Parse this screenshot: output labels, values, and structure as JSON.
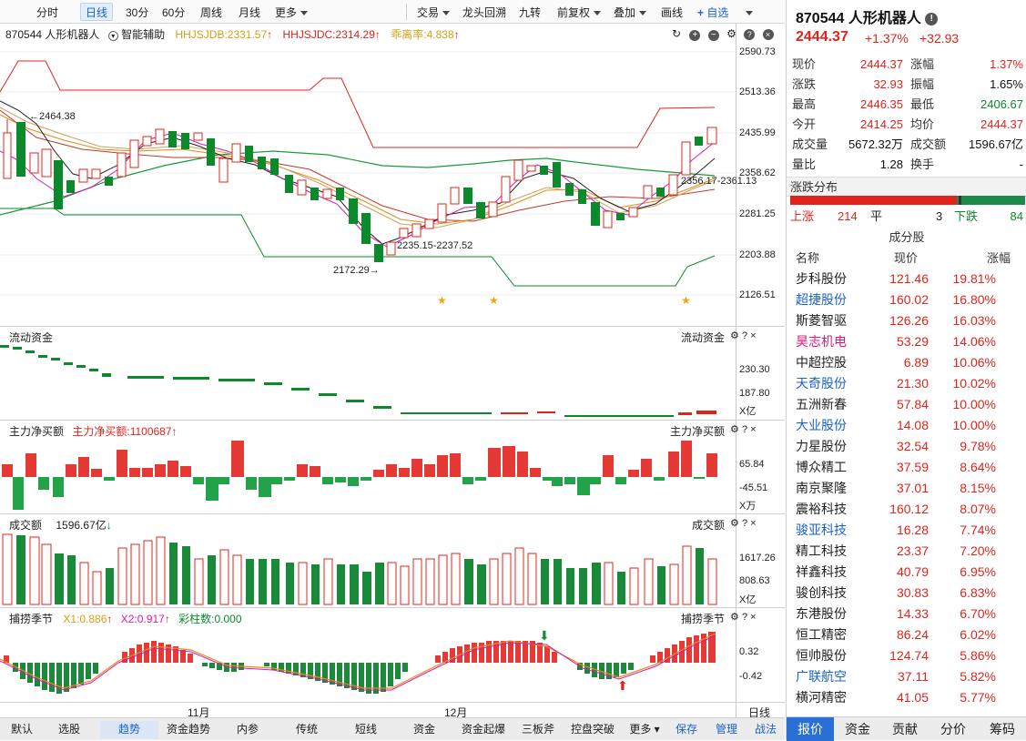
{
  "toolbar": {
    "left": [
      "分时",
      "日线",
      "30分",
      "60分",
      "周线",
      "月线",
      "更多"
    ],
    "right": [
      "交易",
      "龙头回溯",
      "九转",
      "前复权",
      "叠加",
      "画线",
      "自选"
    ]
  },
  "main": {
    "stock_label": "870544 人形机器人",
    "assist": "智能辅助",
    "ind1": "HHJSJDB:2331.57",
    "ind2": "HHJSJDC:2314.29",
    "ind3": "乖离率:4.838",
    "y_ticks": [
      "2590.73",
      "2513.36",
      "2435.99",
      "2358.62",
      "2281.25",
      "2203.88",
      "2126.51"
    ],
    "ann_high": "2464.38",
    "ann_mid": "2356.17-2361.13",
    "ann_low_range": "2235.15-2237.52",
    "ann_low": "2172.29"
  },
  "flow": {
    "title": "流动资金",
    "right_title": "流动资金",
    "ticks": [
      "230.30",
      "187.80"
    ],
    "unit": "X亿"
  },
  "net": {
    "title": "主力净买额",
    "value": "主力净买额:1100687",
    "right_title": "主力净买额",
    "ticks": [
      "65.84",
      "-45.51"
    ],
    "unit": "X万"
  },
  "vol": {
    "title": "成交额",
    "value": "1596.67亿",
    "right_title": "成交额",
    "ticks": [
      "1617.26",
      "808.63"
    ],
    "unit": "X亿"
  },
  "season": {
    "title": "捕捞季节",
    "x1": "X1:0.886",
    "x2": "X2:0.917",
    "bars": "彩柱数:0.000",
    "right_title": "捕捞季节",
    "ticks": [
      "0.32",
      "-0.42"
    ]
  },
  "xaxis": {
    "nov": "11月",
    "dec": "12月",
    "period": "日线"
  },
  "bottom_tabs": [
    "默认",
    "选股",
    "趋势",
    "资金趋势",
    "内参",
    "传统",
    "短线",
    "资金",
    "资金起爆",
    "三板斧",
    "控盘突破",
    "更多",
    "保存",
    "管理",
    "战法"
  ],
  "quote": {
    "title": "870544 人形机器人",
    "price": "2444.37",
    "pct": "+1.37%",
    "chg": "+32.93",
    "rows": [
      [
        "现价",
        "2444.37",
        "涨幅",
        "1.37%"
      ],
      [
        "涨跌",
        "32.93",
        "振幅",
        "1.65%"
      ],
      [
        "最高",
        "2446.35",
        "最低",
        "2406.67"
      ],
      [
        "今开",
        "2414.25",
        "均价",
        "2444.37"
      ],
      [
        "成交量",
        "5672.32万",
        "成交额",
        "1596.67亿"
      ],
      [
        "量比",
        "1.28",
        "换手",
        "-"
      ]
    ],
    "breadth_title": "涨跌分布",
    "up_label": "上涨",
    "up": "214",
    "flat_label": "平",
    "flat": "3",
    "down_label": "下跌",
    "down": "84",
    "comp_title": "成分股",
    "comp_head": [
      "名称",
      "现价",
      "涨幅"
    ],
    "components": [
      [
        "步科股份",
        "121.46",
        "19.81%"
      ],
      [
        "超捷股份",
        "160.02",
        "16.80%"
      ],
      [
        "斯菱智驱",
        "126.26",
        "16.03%"
      ],
      [
        "昊志机电",
        "53.29",
        "14.06%"
      ],
      [
        "中超控股",
        "6.89",
        "10.06%"
      ],
      [
        "天奇股份",
        "21.30",
        "10.02%"
      ],
      [
        "五洲新春",
        "57.84",
        "10.00%"
      ],
      [
        "大业股份",
        "14.08",
        "10.00%"
      ],
      [
        "力星股份",
        "32.54",
        "9.78%"
      ],
      [
        "博众精工",
        "37.59",
        "8.64%"
      ],
      [
        "南京聚隆",
        "37.01",
        "8.15%"
      ],
      [
        "震裕科技",
        "160.12",
        "8.07%"
      ],
      [
        "骏亚科技",
        "16.28",
        "7.74%"
      ],
      [
        "精工科技",
        "23.37",
        "7.20%"
      ],
      [
        "祥鑫科技",
        "40.79",
        "6.95%"
      ],
      [
        "骏创科技",
        "30.83",
        "6.83%"
      ],
      [
        "东港股份",
        "14.33",
        "6.70%"
      ],
      [
        "恒工精密",
        "86.24",
        "6.02%"
      ],
      [
        "恒帅股份",
        "124.74",
        "5.86%"
      ],
      [
        "广联航空",
        "37.11",
        "5.82%"
      ],
      [
        "横河精密",
        "41.05",
        "5.77%"
      ]
    ],
    "tabs": [
      "报价",
      "资金",
      "贡献",
      "分价",
      "筹码"
    ]
  }
}
